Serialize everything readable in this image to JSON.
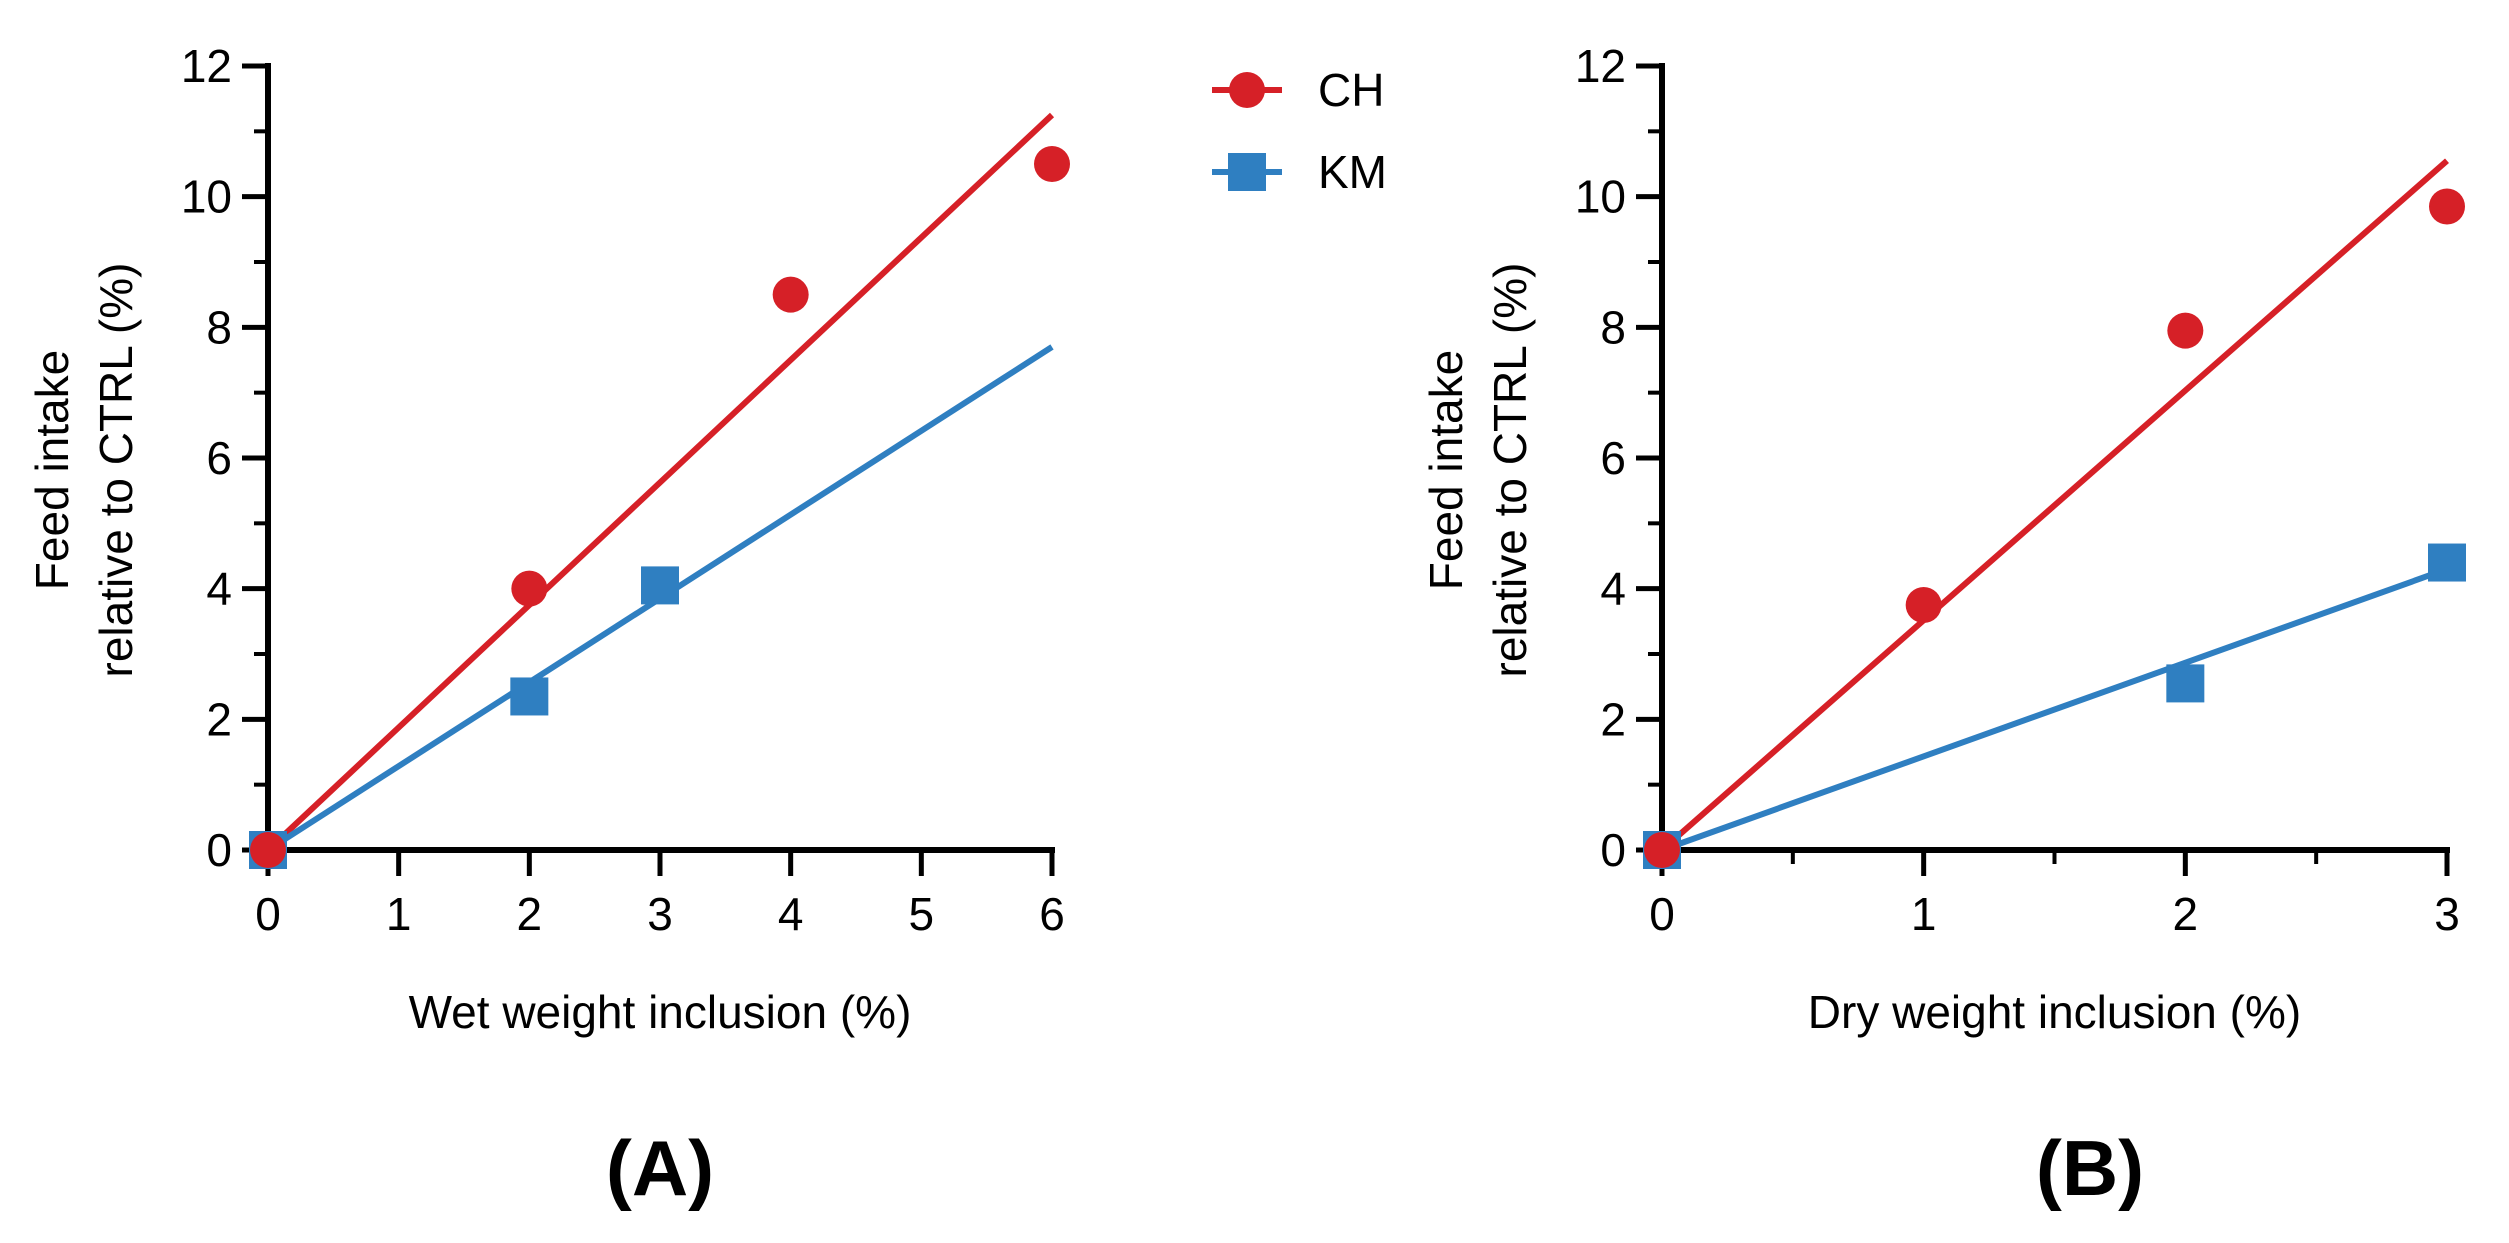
{
  "legend": {
    "entries": [
      {
        "label": "CH",
        "color": "#d62027",
        "marker": "circle"
      },
      {
        "label": "KM",
        "color": "#2f7fc1",
        "marker": "square"
      }
    ]
  },
  "chart_data": [
    {
      "type": "scatter",
      "panel_label": "(A)",
      "xlabel": "Wet weight inclusion (%)",
      "ylabel_lines": [
        "Feed intake",
        "relative to CTRL (%)"
      ],
      "xlim": [
        0,
        6
      ],
      "ylim": [
        0,
        12
      ],
      "xticks": [
        0,
        1,
        2,
        3,
        4,
        5,
        6
      ],
      "yticks": [
        0,
        2,
        4,
        6,
        8,
        10,
        12
      ],
      "x_minor_ticks": [],
      "y_minor_ticks": [
        1,
        3,
        5,
        7,
        9,
        11
      ],
      "series": [
        {
          "name": "CH",
          "color": "#d62027",
          "marker": "circle",
          "points": [
            [
              0,
              0
            ],
            [
              2,
              4.0
            ],
            [
              4,
              8.5
            ],
            [
              6,
              10.5
            ]
          ],
          "fit": [
            [
              0,
              0
            ],
            [
              6,
              11.25
            ]
          ]
        },
        {
          "name": "KM",
          "color": "#2f7fc1",
          "marker": "square",
          "points": [
            [
              0,
              0
            ],
            [
              2,
              2.35
            ],
            [
              3,
              4.05
            ]
          ],
          "fit": [
            [
              0,
              0
            ],
            [
              6,
              7.7
            ]
          ]
        }
      ]
    },
    {
      "type": "scatter",
      "panel_label": "(B)",
      "xlabel": "Dry weight inclusion (%)",
      "ylabel_lines": [
        "Feed intake",
        "relative to CTRL (%)"
      ],
      "xlim": [
        0,
        3
      ],
      "ylim": [
        0,
        12
      ],
      "xticks": [
        0,
        1,
        2,
        3
      ],
      "yticks": [
        0,
        2,
        4,
        6,
        8,
        10,
        12
      ],
      "x_minor_ticks": [
        0.5,
        1.5,
        2.5
      ],
      "y_minor_ticks": [
        1,
        3,
        5,
        7,
        9,
        11
      ],
      "series": [
        {
          "name": "CH",
          "color": "#d62027",
          "marker": "circle",
          "points": [
            [
              0,
              0
            ],
            [
              1,
              3.75
            ],
            [
              2,
              7.95
            ],
            [
              3,
              9.85
            ]
          ],
          "fit": [
            [
              0,
              0
            ],
            [
              3,
              10.55
            ]
          ]
        },
        {
          "name": "KM",
          "color": "#2f7fc1",
          "marker": "square",
          "points": [
            [
              0,
              0
            ],
            [
              2,
              2.55
            ],
            [
              3,
              4.4
            ]
          ],
          "fit": [
            [
              0,
              0
            ],
            [
              3,
              4.3
            ]
          ]
        }
      ]
    }
  ]
}
